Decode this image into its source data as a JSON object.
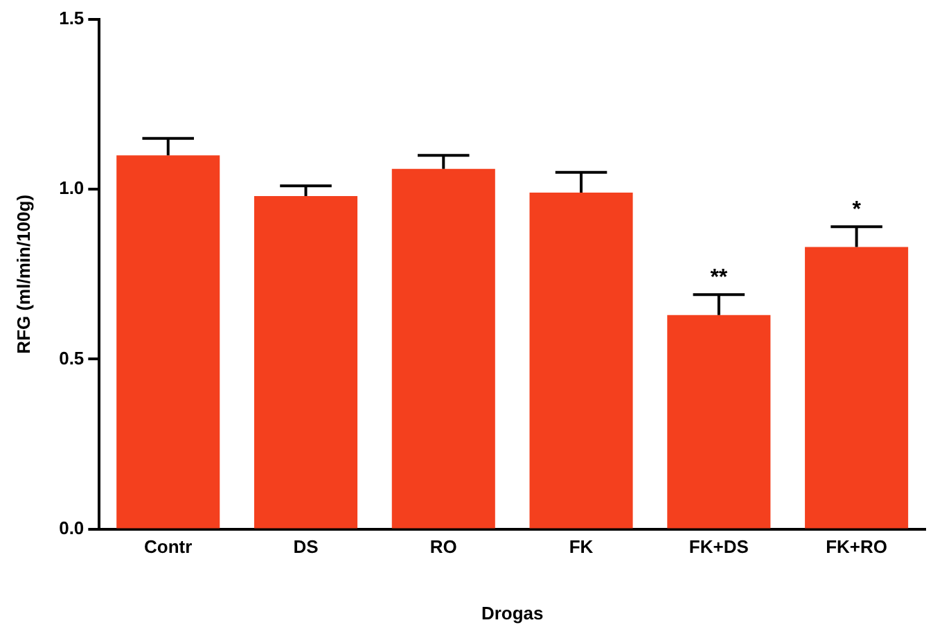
{
  "chart_data": {
    "type": "bar",
    "xlabel": "Drogas",
    "ylabel": "RFG (ml/min/100g)",
    "categories": [
      "Contr",
      "DS",
      "RO",
      "FK",
      "FK+DS",
      "FK+RO"
    ],
    "values": [
      1.1,
      0.98,
      1.06,
      0.99,
      0.63,
      0.83
    ],
    "errors": [
      [
        1.1,
        1.15
      ],
      [
        0.98,
        1.01
      ],
      [
        1.06,
        1.1
      ],
      [
        0.99,
        1.05
      ],
      [
        0.63,
        0.69
      ],
      [
        0.83,
        0.89
      ]
    ],
    "color": "#f4401e",
    "ylim": [
      0,
      1.5
    ],
    "yticks": [
      {
        "value": 0,
        "label": "0.0"
      },
      {
        "value": 0.5,
        "label": "0.5"
      },
      {
        "value": 1.0,
        "label": "1.0"
      },
      {
        "value": 1.5,
        "label": "1.5"
      }
    ],
    "grid": false,
    "legend": false,
    "annotations": [
      {
        "text": "**",
        "x": "FK+DS",
        "y": 0.69
      },
      {
        "text": "*",
        "x": "FK+RO",
        "y": 0.89
      }
    ]
  }
}
